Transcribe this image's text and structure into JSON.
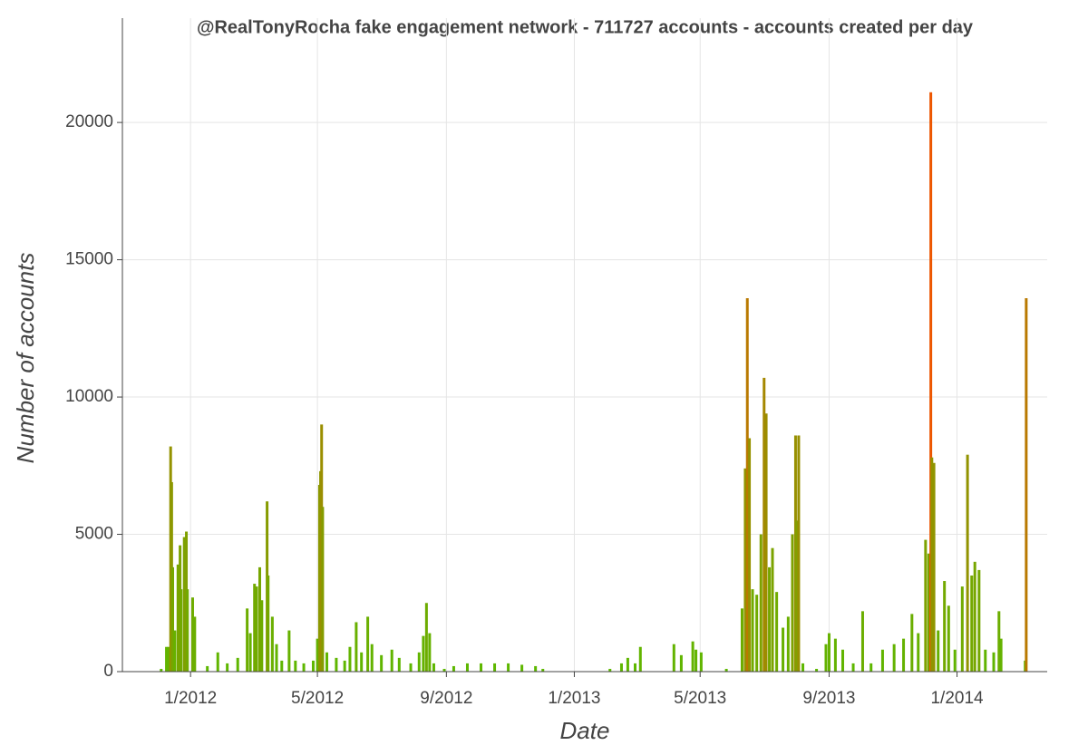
{
  "chart_data": {
    "type": "bar",
    "title": "@RealTonyRocha fake engagement network - 711727 accounts - accounts created per day",
    "x_label": "Date",
    "y_label": "Number of accounts",
    "x": [
      "2011-12-04",
      "2011-12-09",
      "2011-12-11",
      "2011-12-13",
      "2011-12-14",
      "2011-12-15",
      "2011-12-17",
      "2011-12-20",
      "2011-12-22",
      "2011-12-23",
      "2011-12-26",
      "2011-12-28",
      "2011-12-29",
      "2012-01-03",
      "2012-01-05",
      "2012-01-17",
      "2012-01-27",
      "2012-02-05",
      "2012-02-15",
      "2012-02-24",
      "2012-02-27",
      "2012-03-02",
      "2012-03-04",
      "2012-03-07",
      "2012-03-09",
      "2012-03-14",
      "2012-03-15",
      "2012-03-19",
      "2012-03-23",
      "2012-03-28",
      "2012-04-04",
      "2012-04-10",
      "2012-04-18",
      "2012-04-27",
      "2012-05-01",
      "2012-05-03",
      "2012-05-04",
      "2012-05-05",
      "2012-05-06",
      "2012-05-10",
      "2012-05-19",
      "2012-05-27",
      "2012-06-01",
      "2012-06-07",
      "2012-06-12",
      "2012-06-18",
      "2012-06-22",
      "2012-07-01",
      "2012-07-11",
      "2012-07-18",
      "2012-07-29",
      "2012-08-06",
      "2012-08-10",
      "2012-08-13",
      "2012-08-16",
      "2012-08-20",
      "2012-08-30",
      "2012-09-08",
      "2012-09-21",
      "2012-10-04",
      "2012-10-17",
      "2012-10-30",
      "2012-11-12",
      "2012-11-25",
      "2012-12-02",
      "2013-02-04",
      "2013-02-15",
      "2013-02-21",
      "2013-02-28",
      "2013-03-05",
      "2013-04-06",
      "2013-04-13",
      "2013-04-24",
      "2013-04-27",
      "2013-05-02",
      "2013-05-26",
      "2013-06-10",
      "2013-06-13",
      "2013-06-15",
      "2013-06-17",
      "2013-06-20",
      "2013-06-24",
      "2013-06-28",
      "2013-07-01",
      "2013-07-03",
      "2013-07-06",
      "2013-07-09",
      "2013-07-13",
      "2013-07-19",
      "2013-07-24",
      "2013-07-28",
      "2013-07-31",
      "2013-08-01",
      "2013-08-03",
      "2013-08-07",
      "2013-08-20",
      "2013-08-29",
      "2013-09-01",
      "2013-09-07",
      "2013-09-14",
      "2013-09-24",
      "2013-10-03",
      "2013-10-11",
      "2013-10-22",
      "2013-11-02",
      "2013-11-11",
      "2013-11-19",
      "2013-11-25",
      "2013-12-02",
      "2013-12-05",
      "2013-12-07",
      "2013-12-08",
      "2013-12-10",
      "2013-12-14",
      "2013-12-20",
      "2013-12-24",
      "2013-12-30",
      "2014-01-06",
      "2014-01-11",
      "2014-01-15",
      "2014-01-18",
      "2014-01-22",
      "2014-01-28",
      "2014-02-05",
      "2014-02-10",
      "2014-02-12",
      "2014-03-07",
      "2014-03-08"
    ],
    "values": [
      100,
      900,
      900,
      8200,
      6900,
      3800,
      1500,
      3900,
      4600,
      3000,
      4900,
      5100,
      3000,
      2700,
      2000,
      200,
      700,
      300,
      500,
      2300,
      1400,
      3200,
      3100,
      3800,
      2600,
      6200,
      3500,
      2000,
      1000,
      400,
      1500,
      400,
      300,
      400,
      1200,
      6800,
      7300,
      9000,
      6000,
      700,
      500,
      400,
      900,
      1800,
      700,
      2000,
      1000,
      600,
      800,
      500,
      300,
      700,
      1300,
      2500,
      1400,
      300,
      100,
      200,
      300,
      300,
      300,
      300,
      250,
      200,
      100,
      100,
      300,
      500,
      300,
      900,
      1000,
      600,
      1100,
      800,
      700,
      100,
      2300,
      7400,
      13600,
      8500,
      3000,
      2800,
      5000,
      10700,
      9400,
      3800,
      4500,
      2900,
      1600,
      2000,
      5000,
      8600,
      5500,
      8600,
      300,
      100,
      1000,
      1400,
      1200,
      800,
      300,
      2200,
      300,
      800,
      1000,
      1200,
      2100,
      1400,
      4800,
      4300,
      21100,
      7800,
      7600,
      1500,
      3300,
      2400,
      800,
      3100,
      7900,
      3500,
      4000,
      3700,
      800,
      700,
      2200,
      1200,
      400,
      13600
    ],
    "colormap": [
      "#5cb800",
      "#ff4a00"
    ],
    "xlim": [
      "2011-10-28",
      "2014-03-28"
    ],
    "xticks": [
      {
        "value": "2012-01-01",
        "label": "1/2012"
      },
      {
        "value": "2012-05-01",
        "label": "5/2012"
      },
      {
        "value": "2012-09-01",
        "label": "9/2012"
      },
      {
        "value": "2013-01-01",
        "label": "1/2013"
      },
      {
        "value": "2013-05-01",
        "label": "5/2013"
      },
      {
        "value": "2013-09-01",
        "label": "9/2013"
      },
      {
        "value": "2014-01-01",
        "label": "1/2014"
      }
    ],
    "ylim": [
      0,
      23800
    ],
    "yticks": [
      0,
      5000,
      10000,
      15000,
      20000
    ],
    "grid": true
  }
}
